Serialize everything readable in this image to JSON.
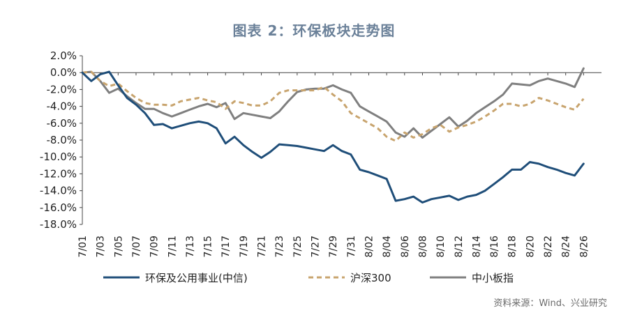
{
  "title": "图表 2：环保板块走势图",
  "source": "资料来源：Wind、兴业研究",
  "chart_data": {
    "type": "line",
    "ylim": [
      -0.18,
      0.02
    ],
    "yticks": [
      0.02,
      0.0,
      -0.02,
      -0.04,
      -0.06,
      -0.08,
      -0.1,
      -0.12,
      -0.14,
      -0.16,
      -0.18
    ],
    "ytick_labels": [
      "2.0%",
      "0.0%",
      "-2.0%",
      "-4.0%",
      "-6.0%",
      "-8.0%",
      "-10.0%",
      "-12.0%",
      "-14.0%",
      "-16.0%",
      "-18.0%"
    ],
    "x_range": [
      0,
      58
    ],
    "x_ticks": [
      0,
      2,
      4,
      6,
      8,
      10,
      12,
      14,
      16,
      18,
      20,
      22,
      24,
      26,
      28,
      30,
      32,
      34,
      36,
      38,
      40,
      42,
      44,
      46,
      48,
      50,
      52,
      54,
      56
    ],
    "x_tick_labels": [
      "7/01",
      "7/03",
      "7/05",
      "7/07",
      "7/09",
      "7/11",
      "7/13",
      "7/15",
      "7/17",
      "7/19",
      "7/21",
      "7/23",
      "7/25",
      "7/27",
      "7/29",
      "7/31",
      "8/02",
      "8/04",
      "8/06",
      "8/08",
      "8/10",
      "8/12",
      "8/14",
      "8/16",
      "8/18",
      "8/20",
      "8/22",
      "8/24",
      "8/26"
    ],
    "legend_position": "bottom",
    "grid": false,
    "series": [
      {
        "name": "环保及公用事业(中信)",
        "color": "#1f4e79",
        "dash": "solid",
        "points": [
          [
            0,
            0.0
          ],
          [
            1,
            -0.01
          ],
          [
            2,
            -0.002
          ],
          [
            3,
            0.001
          ],
          [
            4,
            -0.015
          ],
          [
            5,
            -0.03
          ],
          [
            6,
            -0.038
          ],
          [
            7,
            -0.048
          ],
          [
            8,
            -0.062
          ],
          [
            9,
            -0.061
          ],
          [
            10,
            -0.066
          ],
          [
            11,
            -0.063
          ],
          [
            12,
            -0.06
          ],
          [
            13,
            -0.058
          ],
          [
            14,
            -0.06
          ],
          [
            15,
            -0.066
          ],
          [
            16,
            -0.084
          ],
          [
            17,
            -0.076
          ],
          [
            18,
            -0.086
          ],
          [
            19,
            -0.094
          ],
          [
            20,
            -0.101
          ],
          [
            21,
            -0.094
          ],
          [
            22,
            -0.085
          ],
          [
            23,
            -0.086
          ],
          [
            24,
            -0.087
          ],
          [
            25,
            -0.089
          ],
          [
            26,
            -0.091
          ],
          [
            27,
            -0.093
          ],
          [
            28,
            -0.086
          ],
          [
            29,
            -0.093
          ],
          [
            30,
            -0.097
          ],
          [
            31,
            -0.115
          ],
          [
            32,
            -0.118
          ],
          [
            33,
            -0.122
          ],
          [
            34,
            -0.126
          ],
          [
            35,
            -0.152
          ],
          [
            36,
            -0.15
          ],
          [
            37,
            -0.147
          ],
          [
            38,
            -0.154
          ],
          [
            39,
            -0.15
          ],
          [
            40,
            -0.148
          ],
          [
            41,
            -0.146
          ],
          [
            42,
            -0.151
          ],
          [
            43,
            -0.147
          ],
          [
            44,
            -0.145
          ],
          [
            45,
            -0.14
          ],
          [
            46,
            -0.132
          ],
          [
            47,
            -0.124
          ],
          [
            48,
            -0.115
          ],
          [
            49,
            -0.115
          ],
          [
            50,
            -0.106
          ],
          [
            51,
            -0.108
          ],
          [
            52,
            -0.112
          ],
          [
            53,
            -0.115
          ],
          [
            54,
            -0.119
          ],
          [
            55,
            -0.122
          ],
          [
            56,
            -0.108
          ]
        ]
      },
      {
        "name": "沪深300",
        "color": "#c8a46e",
        "dash": "dashed",
        "points": [
          [
            0,
            0.0
          ],
          [
            1,
            0.001
          ],
          [
            2,
            -0.01
          ],
          [
            3,
            -0.016
          ],
          [
            4,
            -0.013
          ],
          [
            5,
            -0.022
          ],
          [
            6,
            -0.03
          ],
          [
            7,
            -0.036
          ],
          [
            8,
            -0.038
          ],
          [
            9,
            -0.038
          ],
          [
            10,
            -0.039
          ],
          [
            11,
            -0.034
          ],
          [
            12,
            -0.032
          ],
          [
            13,
            -0.03
          ],
          [
            14,
            -0.033
          ],
          [
            15,
            -0.035
          ],
          [
            16,
            -0.043
          ],
          [
            17,
            -0.034
          ],
          [
            18,
            -0.036
          ],
          [
            19,
            -0.039
          ],
          [
            20,
            -0.039
          ],
          [
            21,
            -0.034
          ],
          [
            22,
            -0.024
          ],
          [
            23,
            -0.021
          ],
          [
            24,
            -0.021
          ],
          [
            25,
            -0.021
          ],
          [
            26,
            -0.021
          ],
          [
            27,
            -0.017
          ],
          [
            28,
            -0.026
          ],
          [
            29,
            -0.034
          ],
          [
            30,
            -0.048
          ],
          [
            31,
            -0.054
          ],
          [
            32,
            -0.06
          ],
          [
            33,
            -0.066
          ],
          [
            34,
            -0.076
          ],
          [
            35,
            -0.081
          ],
          [
            36,
            -0.071
          ],
          [
            37,
            -0.077
          ],
          [
            38,
            -0.073
          ],
          [
            39,
            -0.066
          ],
          [
            40,
            -0.062
          ],
          [
            41,
            -0.07
          ],
          [
            42,
            -0.065
          ],
          [
            43,
            -0.062
          ],
          [
            44,
            -0.058
          ],
          [
            45,
            -0.052
          ],
          [
            46,
            -0.045
          ],
          [
            47,
            -0.037
          ],
          [
            48,
            -0.037
          ],
          [
            49,
            -0.04
          ],
          [
            50,
            -0.037
          ],
          [
            51,
            -0.03
          ],
          [
            52,
            -0.033
          ],
          [
            53,
            -0.037
          ],
          [
            54,
            -0.041
          ],
          [
            55,
            -0.044
          ],
          [
            56,
            -0.031
          ]
        ]
      },
      {
        "name": "中小板指",
        "color": "#7f7f7f",
        "dash": "solid",
        "points": [
          [
            0,
            0.0
          ],
          [
            1,
            0.001
          ],
          [
            2,
            -0.01
          ],
          [
            3,
            -0.024
          ],
          [
            4,
            -0.019
          ],
          [
            5,
            -0.028
          ],
          [
            6,
            -0.036
          ],
          [
            7,
            -0.043
          ],
          [
            8,
            -0.043
          ],
          [
            9,
            -0.048
          ],
          [
            10,
            -0.052
          ],
          [
            11,
            -0.048
          ],
          [
            12,
            -0.044
          ],
          [
            13,
            -0.04
          ],
          [
            14,
            -0.037
          ],
          [
            15,
            -0.041
          ],
          [
            16,
            -0.036
          ],
          [
            17,
            -0.055
          ],
          [
            18,
            -0.048
          ],
          [
            19,
            -0.05
          ],
          [
            20,
            -0.052
          ],
          [
            21,
            -0.054
          ],
          [
            22,
            -0.046
          ],
          [
            23,
            -0.034
          ],
          [
            24,
            -0.023
          ],
          [
            25,
            -0.02
          ],
          [
            26,
            -0.019
          ],
          [
            27,
            -0.019
          ],
          [
            28,
            -0.015
          ],
          [
            29,
            -0.02
          ],
          [
            30,
            -0.024
          ],
          [
            31,
            -0.04
          ],
          [
            32,
            -0.046
          ],
          [
            33,
            -0.052
          ],
          [
            34,
            -0.058
          ],
          [
            35,
            -0.071
          ],
          [
            36,
            -0.076
          ],
          [
            37,
            -0.066
          ],
          [
            38,
            -0.077
          ],
          [
            39,
            -0.069
          ],
          [
            40,
            -0.061
          ],
          [
            41,
            -0.053
          ],
          [
            42,
            -0.064
          ],
          [
            43,
            -0.057
          ],
          [
            44,
            -0.048
          ],
          [
            45,
            -0.041
          ],
          [
            46,
            -0.034
          ],
          [
            47,
            -0.026
          ],
          [
            48,
            -0.013
          ],
          [
            49,
            -0.014
          ],
          [
            50,
            -0.015
          ],
          [
            51,
            -0.01
          ],
          [
            52,
            -0.007
          ],
          [
            53,
            -0.01
          ],
          [
            54,
            -0.013
          ],
          [
            55,
            -0.017
          ],
          [
            56,
            0.005
          ]
        ]
      }
    ]
  }
}
